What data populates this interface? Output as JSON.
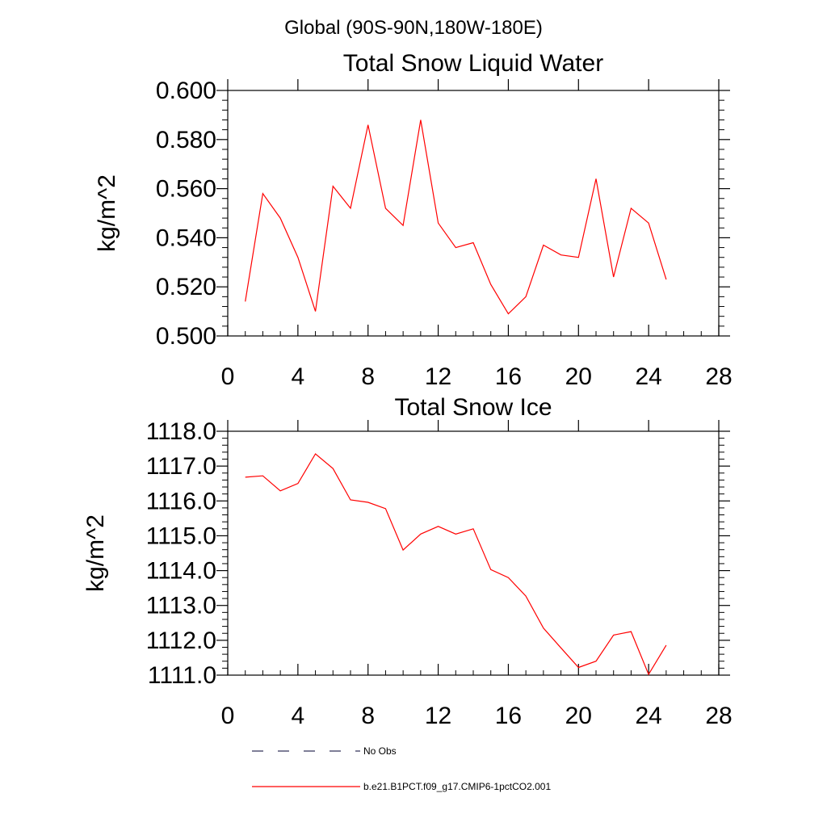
{
  "page": {
    "region_title": "Global (90S-90N,180W-180E)"
  },
  "chart_data": [
    {
      "type": "line",
      "title": "Total Snow Liquid Water",
      "xlabel": "",
      "ylabel": "kg/m^2",
      "xlim": [
        0,
        28
      ],
      "ylim": [
        0.5,
        0.6
      ],
      "x_ticks": [
        0,
        4,
        8,
        12,
        16,
        20,
        24,
        28
      ],
      "x_tick_labels": [
        "0",
        "4",
        "8",
        "12",
        "16",
        "20",
        "24",
        "28"
      ],
      "y_ticks": [
        0.5,
        0.52,
        0.54,
        0.56,
        0.58,
        0.6
      ],
      "y_tick_labels": [
        "0.500",
        "0.520",
        "0.540",
        "0.560",
        "0.580",
        "0.600"
      ],
      "grid": false,
      "series": [
        {
          "name": "b.e21.B1PCT.f09_g17.CMIP6-1pctCO2.001",
          "color": "#ff0000",
          "x": [
            1,
            2,
            3,
            4,
            5,
            6,
            7,
            8,
            9,
            10,
            11,
            12,
            13,
            14,
            15,
            16,
            17,
            18,
            19,
            20,
            21,
            22,
            23,
            24,
            25
          ],
          "values": [
            0.514,
            0.558,
            0.548,
            0.532,
            0.51,
            0.561,
            0.552,
            0.586,
            0.552,
            0.545,
            0.588,
            0.546,
            0.536,
            0.538,
            0.521,
            0.509,
            0.516,
            0.537,
            0.533,
            0.532,
            0.564,
            0.524,
            0.552,
            0.546,
            0.523
          ]
        }
      ]
    },
    {
      "type": "line",
      "title": "Total Snow Ice",
      "xlabel": "",
      "ylabel": "kg/m^2",
      "xlim": [
        0,
        28
      ],
      "ylim": [
        1111.0,
        1118.0
      ],
      "x_ticks": [
        0,
        4,
        8,
        12,
        16,
        20,
        24,
        28
      ],
      "x_tick_labels": [
        "0",
        "4",
        "8",
        "12",
        "16",
        "20",
        "24",
        "28"
      ],
      "y_ticks": [
        1111,
        1112,
        1113,
        1114,
        1115,
        1116,
        1117,
        1118
      ],
      "y_tick_labels": [
        "1111.0",
        "1112.0",
        "1113.0",
        "1114.0",
        "1115.0",
        "1116.0",
        "1117.0",
        "1118.0"
      ],
      "grid": false,
      "series": [
        {
          "name": "b.e21.B1PCT.f09_g17.CMIP6-1pctCO2.001",
          "color": "#ff0000",
          "x": [
            1,
            2,
            3,
            4,
            5,
            6,
            7,
            8,
            9,
            10,
            11,
            12,
            13,
            14,
            15,
            16,
            17,
            18,
            19,
            20,
            21,
            22,
            23,
            24,
            25
          ],
          "values": [
            1116.68,
            1116.72,
            1116.29,
            1116.5,
            1117.35,
            1116.93,
            1116.03,
            1115.96,
            1115.78,
            1114.59,
            1115.05,
            1115.27,
            1115.05,
            1115.2,
            1114.03,
            1113.8,
            1113.27,
            1112.35,
            1111.78,
            1111.22,
            1111.4,
            1112.15,
            1112.25,
            1111.02,
            1111.86
          ]
        }
      ]
    }
  ],
  "legend": {
    "position": "bottom",
    "items": [
      {
        "label": "No Obs",
        "style": "dashed",
        "color": "#33335a"
      },
      {
        "label": "b.e21.B1PCT.f09_g17.CMIP6-1pctCO2.001",
        "style": "solid",
        "color": "#ff0000"
      }
    ]
  }
}
